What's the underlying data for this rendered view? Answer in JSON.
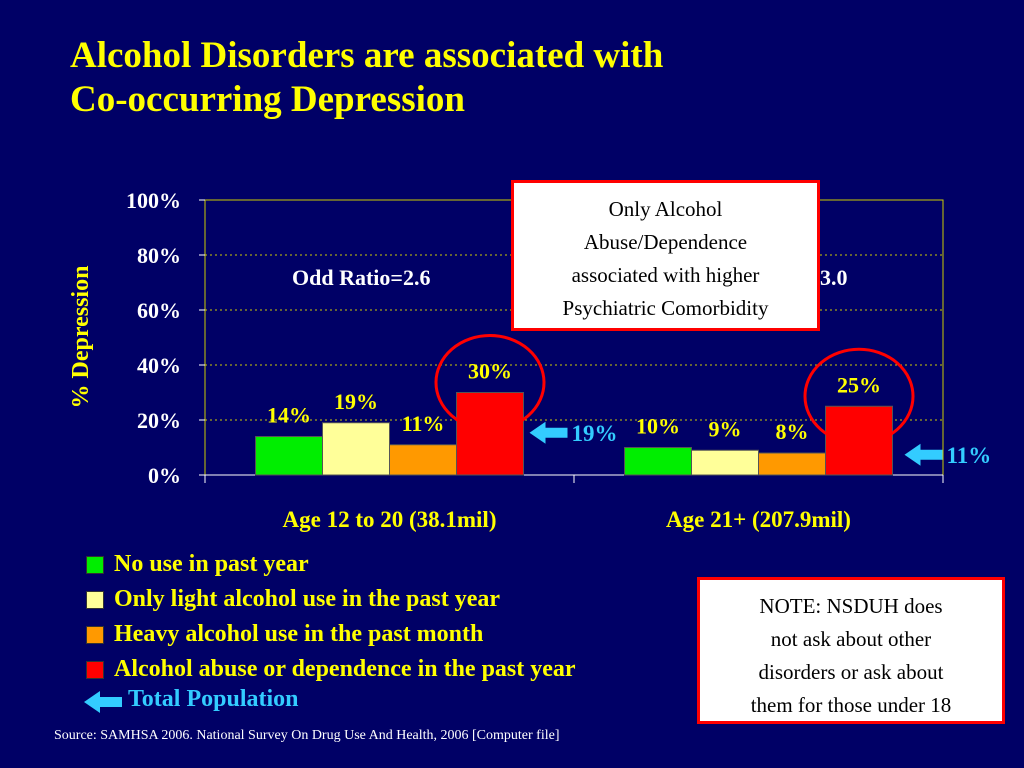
{
  "title": {
    "line1": "Alcohol Disorders are associated with",
    "line2": "Co-occurring Depression"
  },
  "colors": {
    "background": "#000066",
    "title": "#ffff00",
    "no_use": "#00ee00",
    "light_use": "#ffff99",
    "heavy_use": "#ff9900",
    "abuse": "#ff0000",
    "total_arrow": "#33ccff",
    "circle": "#ff0000"
  },
  "chart_data": {
    "type": "bar",
    "ylabel": "% Depression",
    "ylim": [
      0,
      100
    ],
    "y_ticks": [
      0,
      20,
      40,
      60,
      80,
      100
    ],
    "y_tick_labels": [
      "0%",
      "20%",
      "40%",
      "60%",
      "80%",
      "100%"
    ],
    "grid": true,
    "categories": [
      "Age 12 to 20 (38.1mil)",
      "Age 21+ (207.9mil)"
    ],
    "series": [
      {
        "name": "No use in past year",
        "values": [
          14,
          10
        ],
        "labels": [
          "14%",
          "10%"
        ]
      },
      {
        "name": "Only light alcohol use in the past year",
        "values": [
          19,
          9
        ],
        "labels": [
          "19%",
          "9%"
        ]
      },
      {
        "name": "Heavy alcohol use in the past month",
        "values": [
          11,
          8
        ],
        "labels": [
          "11%",
          "8%"
        ]
      },
      {
        "name": "Alcohol abuse or dependence in the past year",
        "values": [
          30,
          25
        ],
        "labels": [
          "30%",
          "25%"
        ]
      }
    ],
    "total_population": {
      "name": "Total Population",
      "values": [
        19,
        11
      ],
      "labels": [
        "19%",
        "11%"
      ]
    },
    "annotations": {
      "odds_ratio_1": "Odd Ratio=2.6",
      "odds_ratio_2": "3.0"
    },
    "legend_position": "bottom-left"
  },
  "callout_top": {
    "lines": [
      "Only Alcohol",
      "Abuse/Dependence",
      "associated with higher",
      "Psychiatric Comorbidity"
    ]
  },
  "callout_note": {
    "lines": [
      "NOTE: NSDUH does",
      "not ask about other",
      "disorders or ask about",
      "them for those under 18"
    ]
  },
  "legend": {
    "items": [
      "No use in past year",
      "Only light alcohol use in the past year",
      "Heavy alcohol use in the past month",
      "Alcohol abuse or dependence in the past year"
    ],
    "total_label": "Total Population"
  },
  "source": "Source:  SAMHSA 2006. National Survey On Drug Use And Health, 2006 [Computer file]"
}
